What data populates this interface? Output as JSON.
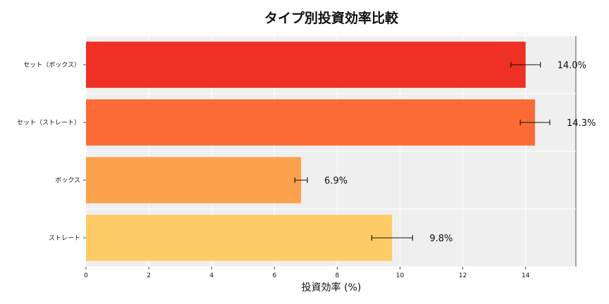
{
  "chart_data": {
    "type": "bar",
    "orientation": "horizontal",
    "title": "タイプ別投資効率比較",
    "xlabel": "投資効率 (%)",
    "ylabel": "",
    "xlim": [
      0,
      15.6
    ],
    "xticks": [
      "0",
      "2",
      "4",
      "6",
      "8",
      "10",
      "12",
      "14"
    ],
    "grid": true,
    "categories": [
      "セット（ボックス）",
      "セット（ストレート）",
      "ボックス",
      "ストレート"
    ],
    "values": [
      14.0,
      14.3,
      6.85,
      9.75
    ],
    "errors": [
      0.47,
      0.47,
      0.2,
      0.65
    ],
    "data_labels": [
      "14.0%",
      "14.3%",
      "6.9%",
      "9.8%"
    ],
    "colors": [
      "#ee3124",
      "#fc6b35",
      "#fca24c",
      "#fecb67"
    ]
  }
}
